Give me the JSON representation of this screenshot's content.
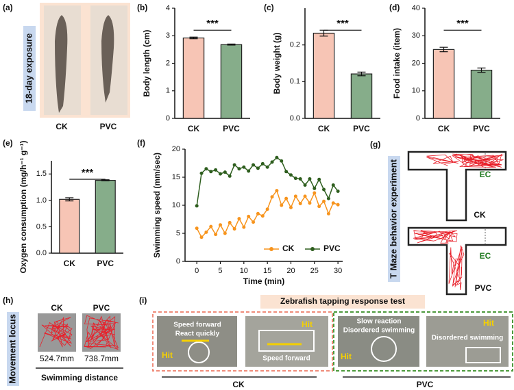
{
  "panels": {
    "a": {
      "label": "(a)",
      "side_label": "18-day exposure",
      "captions": [
        "CK",
        "PVC"
      ]
    },
    "g": {
      "label": "(g)",
      "side_label": "T Maze behavior experiment",
      "zone_labels": [
        "EC",
        "EC"
      ],
      "captions": [
        "CK",
        "PVC"
      ]
    },
    "h": {
      "label": "(h)",
      "side_label": "Movement locus",
      "captions": [
        "CK",
        "PVC"
      ],
      "distances": [
        "524.7mm",
        "738.7mm"
      ],
      "footer": "Swimming distance"
    },
    "i": {
      "label": "(i)",
      "title": "Zebrafish tapping response test",
      "photos": [
        {
          "notes": [
            "Speed forward",
            "React quickly",
            "Hit"
          ]
        },
        {
          "notes": [
            "Hit",
            "Speed forward"
          ]
        },
        {
          "notes": [
            "Slow reaction",
            "Disordered swimming",
            "Hit"
          ]
        },
        {
          "notes": [
            "Hit",
            "Disordered swimming"
          ]
        }
      ],
      "groups": [
        "CK",
        "PVC"
      ]
    }
  },
  "chart_data": [
    {
      "type": "bar",
      "panel_label": "(b)",
      "ylabel": "Body length (cm)",
      "categories": [
        "CK",
        "PVC"
      ],
      "values": [
        2.92,
        2.68
      ],
      "errors": [
        0.03,
        0.02
      ],
      "colors": [
        "#f7c5b5",
        "#86ad8a"
      ],
      "ylim": [
        0,
        4
      ],
      "yticks": [
        0,
        1,
        2,
        3,
        4
      ],
      "annotation": "***"
    },
    {
      "type": "bar",
      "panel_label": "(c)",
      "ylabel": "Body weight (g)",
      "categories": [
        "CK",
        "PVC"
      ],
      "values": [
        0.232,
        0.121
      ],
      "errors": [
        0.008,
        0.005
      ],
      "colors": [
        "#f7c5b5",
        "#86ad8a"
      ],
      "ylim": [
        0,
        0.3
      ],
      "yticks": [
        {
          "value": 0,
          "label": "0.0"
        },
        0.1,
        0.2
      ],
      "annotation": "***"
    },
    {
      "type": "bar",
      "panel_label": "(d)",
      "ylabel": "Food intake (item)",
      "categories": [
        "CK",
        "PVC"
      ],
      "values": [
        25,
        17.5
      ],
      "errors": [
        0.8,
        0.8
      ],
      "colors": [
        "#f7c5b5",
        "#86ad8a"
      ],
      "ylim": [
        0,
        40
      ],
      "yticks": [
        0,
        10,
        20,
        30,
        40
      ],
      "annotation": "***"
    },
    {
      "type": "bar",
      "panel_label": "(e)",
      "ylabel": "Oxygen consumption (mg/h⁻¹ g⁻¹)",
      "categories": [
        "CK",
        "PVC"
      ],
      "values": [
        1.02,
        1.38
      ],
      "errors": [
        0.03,
        0.01
      ],
      "colors": [
        "#f7c5b5",
        "#86ad8a"
      ],
      "ylim": [
        0,
        1.75
      ],
      "yticks": [
        {
          "value": 0,
          "label": "0.0"
        },
        0.5,
        {
          "value": 1,
          "label": "1.0"
        },
        1.5
      ],
      "annotation": "***"
    },
    {
      "type": "line",
      "panel_label": "(f)",
      "ylabel": "Swimming speed (mm/sec)",
      "xlabel": "Time (min)",
      "x": [
        0,
        1,
        2,
        3,
        4,
        5,
        6,
        7,
        8,
        9,
        10,
        11,
        12,
        13,
        14,
        15,
        16,
        17,
        18,
        19,
        20,
        21,
        22,
        23,
        24,
        25,
        26,
        27,
        28,
        29,
        30
      ],
      "series": [
        {
          "name": "CK",
          "color": "#f7941d",
          "values": [
            5.9,
            4.3,
            5.2,
            6.2,
            4.8,
            6.5,
            5.0,
            6.9,
            5.8,
            7.6,
            6.1,
            8.0,
            7.0,
            8.5,
            8.1,
            9.3,
            11.5,
            12.6,
            10.0,
            11.2,
            9.6,
            11.6,
            10.3,
            11.6,
            10.4,
            12.2,
            9.8,
            10.7,
            8.5,
            10.4,
            10.1
          ]
        },
        {
          "name": "PVC",
          "color": "#2e5e1e",
          "values": [
            9.9,
            15.7,
            16.5,
            16.0,
            16.3,
            15.6,
            15.9,
            15.2,
            17.2,
            16.5,
            16.8,
            16.1,
            17.2,
            16.6,
            17.4,
            16.8,
            17.7,
            18.5,
            17.9,
            16.0,
            15.4,
            14.8,
            14.7,
            13.6,
            14.7,
            13.0,
            14.6,
            12.8,
            11.2,
            13.6,
            12.5
          ]
        }
      ],
      "xlim": [
        -2.5,
        31
      ],
      "xticks": [
        0,
        5,
        10,
        15,
        20,
        25,
        30
      ],
      "ylim": [
        0,
        20
      ],
      "yticks": [
        0,
        5,
        10,
        15,
        20
      ],
      "legend": "lower right"
    }
  ]
}
